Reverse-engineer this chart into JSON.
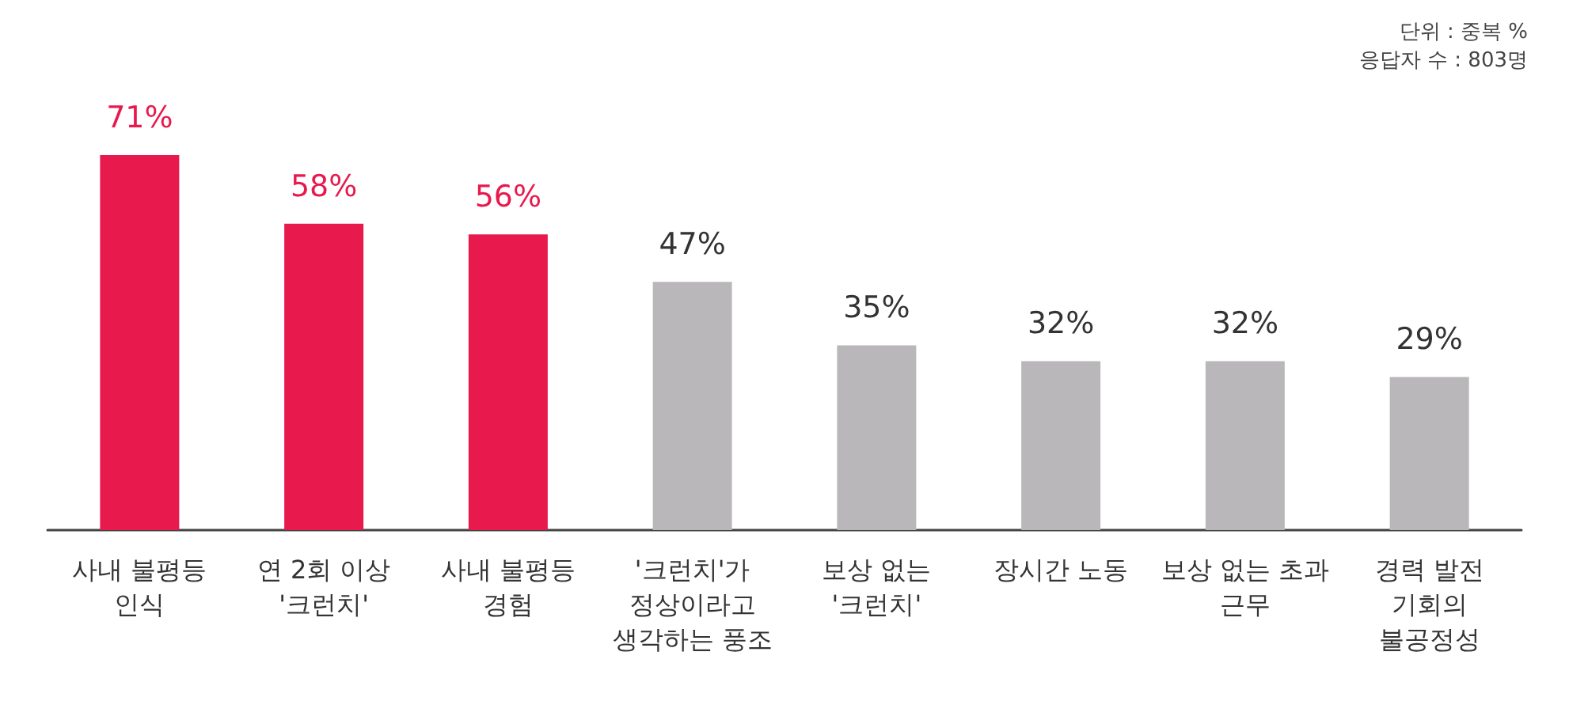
{
  "chart_data": {
    "type": "bar",
    "categories": [
      "사내 불평등\n인식",
      "연 2회 이상\n'크런치'",
      "사내 불평등\n경험",
      "'크런치'가\n정상이라고\n생각하는 풍조",
      "보상 없는\n'크런치'",
      "장시간 노동",
      "보상 없는 초과\n근무",
      "경력 발전\n기회의\n불공정성"
    ],
    "values": [
      71,
      58,
      56,
      47,
      35,
      32,
      32,
      29
    ],
    "colors": [
      "#e8194d",
      "#e8194d",
      "#e8194d",
      "#b9b7ba",
      "#b9b7ba",
      "#b9b7ba",
      "#b9b7ba",
      "#b9b7ba"
    ],
    "value_labels": [
      "71%",
      "58%",
      "56%",
      "47%",
      "35%",
      "32%",
      "32%",
      "29%"
    ],
    "annotations": [
      "단위 : 중복 %",
      "응답자 수 : 803명"
    ]
  }
}
